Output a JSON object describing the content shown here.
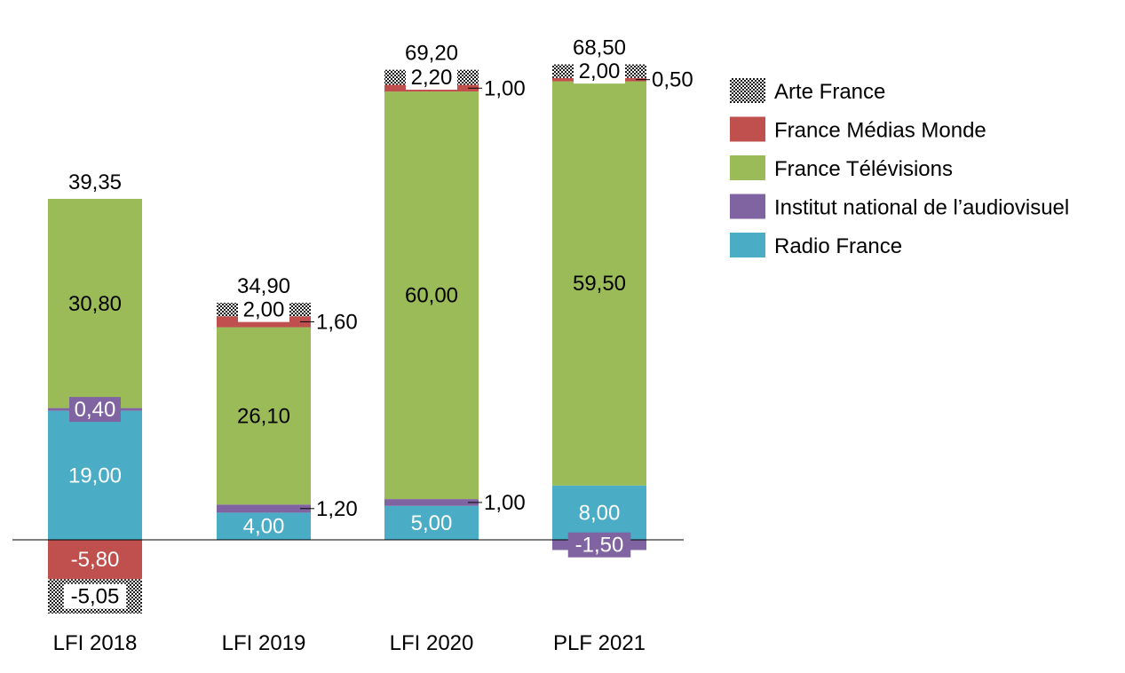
{
  "chart_data": {
    "type": "bar",
    "stacked": true,
    "categories": [
      "LFI 2018",
      "LFI 2019",
      "LFI 2020",
      "PLF 2021"
    ],
    "series": [
      {
        "name": "Radio France",
        "color": "#4BACC6",
        "values": [
          19.0,
          4.0,
          5.0,
          8.0
        ],
        "labels": [
          "19,00",
          "4,00",
          "5,00",
          "8,00"
        ]
      },
      {
        "name": "Institut national de l’audiovisuel",
        "color": "#8064A2",
        "values": [
          0.4,
          1.2,
          1.0,
          -1.5
        ],
        "labels": [
          "0,40",
          "1,20",
          "1,00",
          "-1,50"
        ]
      },
      {
        "name": "France Télévisions",
        "color": "#9BBB59",
        "values": [
          30.8,
          26.1,
          60.0,
          59.5
        ],
        "labels": [
          "30,80",
          "26,10",
          "60,00",
          "59,50"
        ]
      },
      {
        "name": "France Médias Monde",
        "color": "#C0504D",
        "values": [
          -5.8,
          1.6,
          1.0,
          0.5
        ],
        "labels": [
          "-5,80",
          "1,60",
          "1,00",
          "0,50"
        ]
      },
      {
        "name": "Arte France",
        "color": "#1a1a1a",
        "pattern": "checker",
        "values": [
          -5.05,
          2.0,
          2.2,
          2.0
        ],
        "labels": [
          "-5,05",
          "2,00",
          "2,20",
          "2,00"
        ]
      }
    ],
    "totals": [
      "39,35",
      "34,90",
      "69,20",
      "68,50"
    ],
    "legend_order": [
      "Arte France",
      "France Médias Monde",
      "France Télévisions",
      "Institut national de l’audiovisuel",
      "Radio France"
    ],
    "legend_position": "right",
    "grid": false,
    "title": "",
    "xlabel": "",
    "ylabel": ""
  }
}
